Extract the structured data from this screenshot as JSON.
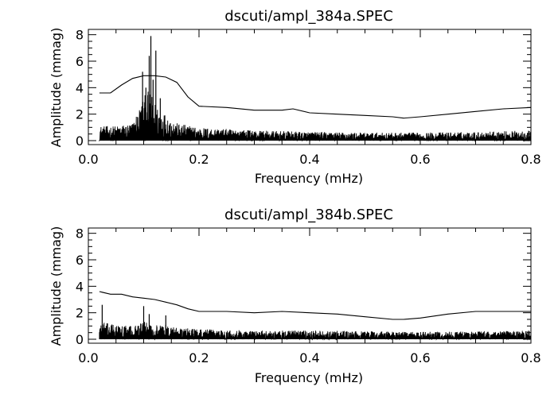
{
  "chart_data": [
    {
      "type": "line",
      "title": "dscuti/ampl_384a.SPEC",
      "xlabel": "Frequency (mHz)",
      "ylabel": "Amplitude (mmag)",
      "xlim": [
        0.0,
        0.8
      ],
      "ylim": [
        -0.3,
        8.4
      ],
      "x_ticks": [
        "0.0",
        "0.2",
        "0.4",
        "0.6",
        "0.8"
      ],
      "y_ticks": [
        "0",
        "2",
        "4",
        "6",
        "8"
      ],
      "grid": false,
      "legend": "none",
      "series": [
        {
          "role": "significance threshold",
          "x": [
            0.02,
            0.04,
            0.06,
            0.08,
            0.1,
            0.12,
            0.14,
            0.16,
            0.18,
            0.2,
            0.25,
            0.3,
            0.35,
            0.37,
            0.4,
            0.45,
            0.5,
            0.55,
            0.57,
            0.6,
            0.65,
            0.7,
            0.75,
            0.8
          ],
          "y": [
            3.6,
            3.6,
            4.2,
            4.7,
            4.9,
            4.9,
            4.8,
            4.4,
            3.3,
            2.6,
            2.5,
            2.3,
            2.3,
            2.4,
            2.1,
            2.0,
            1.9,
            1.8,
            1.7,
            1.8,
            2.0,
            2.2,
            2.4,
            2.5
          ]
        },
        {
          "role": "amplitude spectrum",
          "x": [
            0.02,
            0.05,
            0.08,
            0.1,
            0.11,
            0.12,
            0.14,
            0.16,
            0.2,
            0.25,
            0.3,
            0.4,
            0.5,
            0.6,
            0.7,
            0.8
          ],
          "y": [
            1.0,
            1.0,
            1.2,
            3.0,
            3.5,
            2.6,
            1.8,
            1.2,
            0.9,
            0.8,
            0.7,
            0.6,
            0.55,
            0.55,
            0.6,
            0.7
          ]
        }
      ],
      "peaks": [
        {
          "x": 0.098,
          "y": 5.2
        },
        {
          "x": 0.104,
          "y": 4.0
        },
        {
          "x": 0.11,
          "y": 6.4
        },
        {
          "x": 0.113,
          "y": 7.9
        },
        {
          "x": 0.117,
          "y": 4.6
        },
        {
          "x": 0.122,
          "y": 6.8
        },
        {
          "x": 0.13,
          "y": 3.2
        }
      ]
    },
    {
      "type": "line",
      "title": "dscuti/ampl_384b.SPEC",
      "xlabel": "Frequency (mHz)",
      "ylabel": "Amplitude (mmag)",
      "xlim": [
        0.0,
        0.8
      ],
      "ylim": [
        -0.3,
        8.4
      ],
      "x_ticks": [
        "0.0",
        "0.2",
        "0.4",
        "0.6",
        "0.8"
      ],
      "y_ticks": [
        "0",
        "2",
        "4",
        "6",
        "8"
      ],
      "grid": false,
      "legend": "none",
      "series": [
        {
          "role": "significance threshold",
          "x": [
            0.02,
            0.04,
            0.06,
            0.08,
            0.1,
            0.12,
            0.14,
            0.16,
            0.18,
            0.2,
            0.25,
            0.3,
            0.35,
            0.4,
            0.45,
            0.5,
            0.55,
            0.57,
            0.6,
            0.65,
            0.7,
            0.75,
            0.8
          ],
          "y": [
            3.6,
            3.4,
            3.4,
            3.2,
            3.1,
            3.0,
            2.8,
            2.6,
            2.3,
            2.1,
            2.1,
            2.0,
            2.1,
            2.0,
            1.9,
            1.7,
            1.5,
            1.5,
            1.6,
            1.9,
            2.1,
            2.1,
            2.1
          ]
        },
        {
          "role": "amplitude spectrum",
          "x": [
            0.02,
            0.05,
            0.08,
            0.1,
            0.12,
            0.14,
            0.16,
            0.2,
            0.25,
            0.3,
            0.4,
            0.5,
            0.6,
            0.7,
            0.8
          ],
          "y": [
            1.2,
            1.0,
            0.9,
            1.2,
            1.0,
            1.0,
            0.8,
            0.7,
            0.65,
            0.6,
            0.6,
            0.55,
            0.5,
            0.55,
            0.6
          ]
        }
      ],
      "peaks": [
        {
          "x": 0.025,
          "y": 2.6
        },
        {
          "x": 0.1,
          "y": 2.5
        },
        {
          "x": 0.11,
          "y": 1.9
        },
        {
          "x": 0.14,
          "y": 1.8
        }
      ]
    }
  ]
}
